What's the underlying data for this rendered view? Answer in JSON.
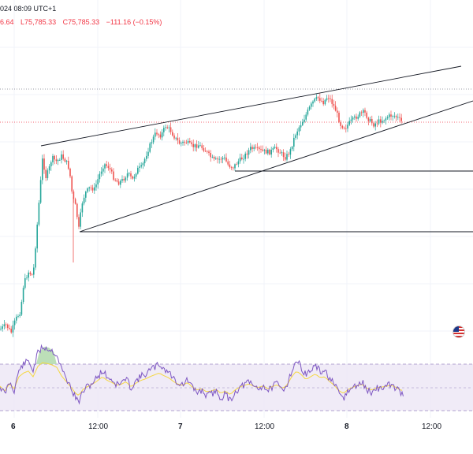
{
  "header": {
    "datetime_text": "024 08:09 UTC+1",
    "ohlc": {
      "open_fragment": "6.64",
      "low": "L75,785.33",
      "close": "C75,785.33",
      "change": "−111.16 (−0.15%)",
      "color": "#f23645"
    }
  },
  "time_axis": {
    "labels": [
      {
        "text": "6",
        "bold": true
      },
      {
        "text": "12:00",
        "bold": false
      },
      {
        "text": "7",
        "bold": true
      },
      {
        "text": "12:00",
        "bold": false
      },
      {
        "text": "8",
        "bold": true
      },
      {
        "text": "12:00",
        "bold": false
      }
    ]
  },
  "flag_icon": "us-flag-icon",
  "colors": {
    "up": "#26a69a",
    "down": "#ef5350",
    "rsi_line": "#7e57c2",
    "rsi_ma": "#f5d742",
    "rsi_band": "#ede7f6",
    "drawing": "#131722",
    "price_line": "#f23645"
  },
  "chart_data": {
    "type": "candlestick",
    "indicator": "RSI"
  }
}
